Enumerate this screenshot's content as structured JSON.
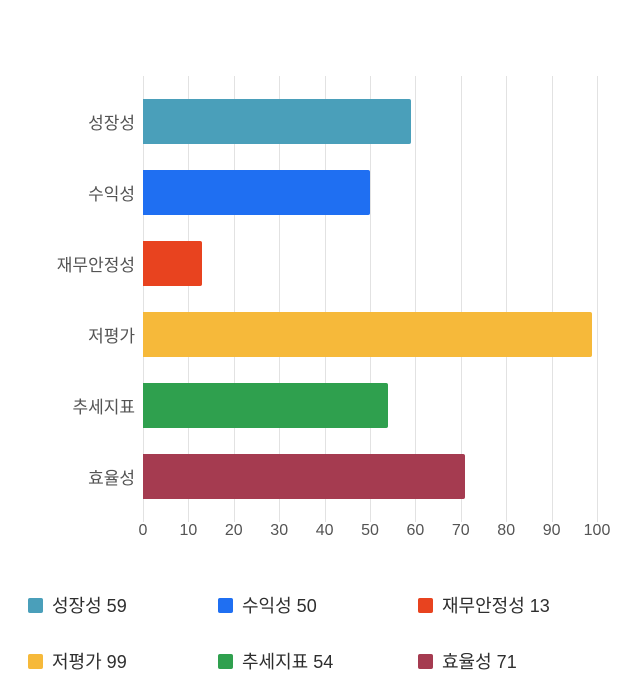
{
  "chart_data": {
    "type": "bar",
    "orientation": "horizontal",
    "title": "",
    "xlabel": "",
    "ylabel": "",
    "categories": [
      "성장성",
      "수익성",
      "재무안정성",
      "저평가",
      "추세지표",
      "효율성"
    ],
    "values": [
      59,
      50,
      13,
      99,
      54,
      71
    ],
    "colors": [
      "#4a9fba",
      "#1f6ff2",
      "#e8431f",
      "#f6b93a",
      "#2fa04e",
      "#a53b50"
    ],
    "xlim": [
      0,
      100
    ],
    "x_ticks": [
      0,
      10,
      20,
      30,
      40,
      50,
      60,
      70,
      80,
      90,
      100
    ],
    "grid": true,
    "legend_position": "bottom"
  },
  "legend": {
    "items": [
      {
        "label": "성장성 59",
        "color": "#4a9fba"
      },
      {
        "label": "수익성 50",
        "color": "#1f6ff2"
      },
      {
        "label": "재무안정성 13",
        "color": "#e8431f"
      },
      {
        "label": "저평가 99",
        "color": "#f6b93a"
      },
      {
        "label": "추세지표 54",
        "color": "#2fa04e"
      },
      {
        "label": "효율성 71",
        "color": "#a53b50"
      }
    ]
  }
}
